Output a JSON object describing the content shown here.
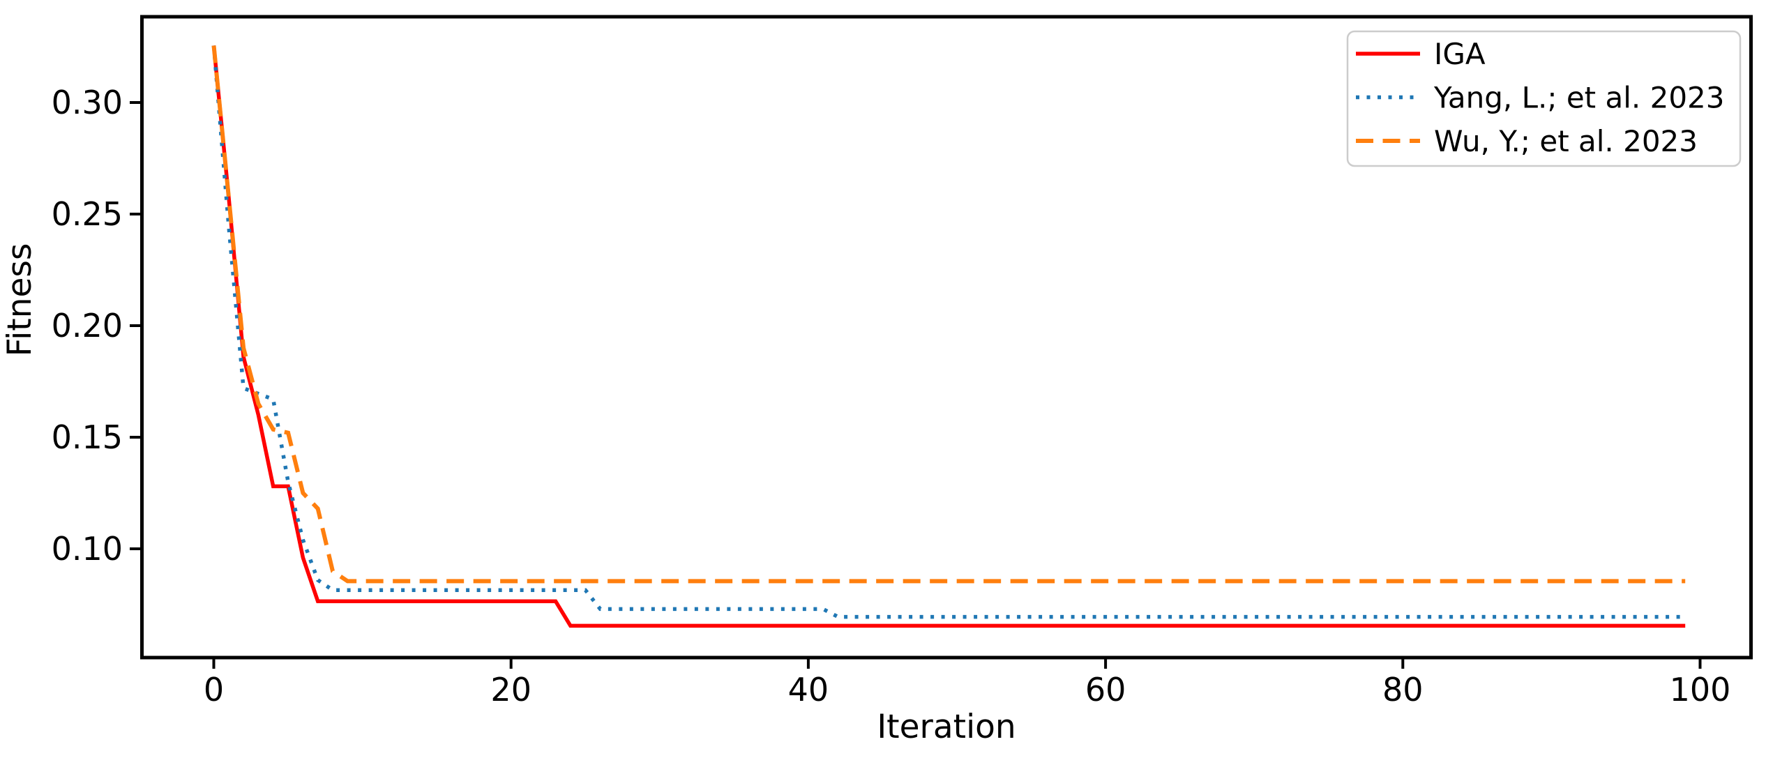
{
  "chart_data": {
    "type": "line",
    "title": "",
    "xlabel": "Iteration",
    "ylabel": "Fitness",
    "xlim": [
      -4.95,
      103.95
    ],
    "ylim": [
      0.051,
      0.34
    ],
    "xticks": [
      0,
      20,
      40,
      60,
      80,
      100
    ],
    "yticks": [
      0.1,
      0.15,
      0.2,
      0.25,
      0.3
    ],
    "grid": false,
    "legend_position": "upper right",
    "axis_color": "#000000",
    "legend_border_color": "#cccccc",
    "series": [
      {
        "name": "IGA",
        "color": "#ff0000",
        "style": "solid",
        "points": [
          [
            0,
            0.3255
          ],
          [
            1,
            0.258
          ],
          [
            2,
            0.186
          ],
          [
            3,
            0.16
          ],
          [
            4,
            0.128
          ],
          [
            5,
            0.128
          ],
          [
            6,
            0.096
          ],
          [
            7,
            0.0765
          ],
          [
            23,
            0.0765
          ],
          [
            24,
            0.0655
          ],
          [
            99,
            0.0655
          ]
        ]
      },
      {
        "name": "Yang, L.; et al. 2023",
        "color": "#1f77b4",
        "style": "dotted",
        "points": [
          [
            0,
            0.3255
          ],
          [
            1,
            0.245
          ],
          [
            2,
            0.172
          ],
          [
            4,
            0.167
          ],
          [
            5,
            0.13
          ],
          [
            6,
            0.104
          ],
          [
            7,
            0.086
          ],
          [
            8,
            0.0815
          ],
          [
            25,
            0.0815
          ],
          [
            26,
            0.073
          ],
          [
            41,
            0.073
          ],
          [
            42,
            0.0695
          ],
          [
            99,
            0.0695
          ]
        ]
      },
      {
        "name": "Wu, Y.; et al. 2023",
        "color": "#ff7f0e",
        "style": "dashed",
        "points": [
          [
            0,
            0.3255
          ],
          [
            1,
            0.258
          ],
          [
            2,
            0.19
          ],
          [
            3,
            0.165
          ],
          [
            4,
            0.1535
          ],
          [
            5,
            0.152
          ],
          [
            6,
            0.125
          ],
          [
            7,
            0.118
          ],
          [
            8,
            0.09
          ],
          [
            9,
            0.0855
          ],
          [
            99,
            0.0855
          ]
        ]
      }
    ]
  }
}
